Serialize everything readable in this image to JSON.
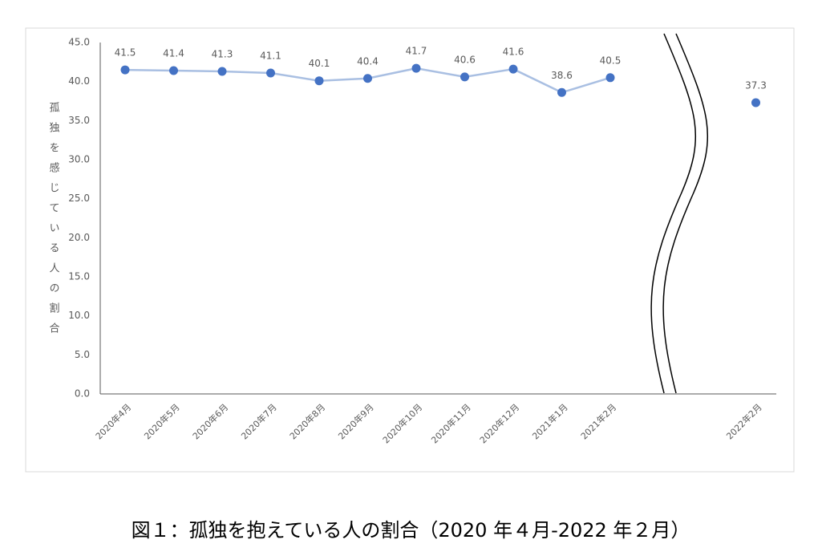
{
  "chart_data": {
    "type": "line",
    "y_label": "孤独を感じている人の割合",
    "caption": "図１：孤独を抱えている人の割合（2020 年４月-2022 年２月）",
    "categories": [
      "2020年4月",
      "2020年5月",
      "2020年6月",
      "2020年7月",
      "2020年8月",
      "2020年9月",
      "2020年10月",
      "2020年11月",
      "2020年12月",
      "2021年1月",
      "2021年2月",
      null,
      null,
      "2022年2月"
    ],
    "values": [
      41.5,
      41.4,
      41.3,
      41.1,
      40.1,
      40.4,
      41.7,
      40.6,
      41.6,
      38.6,
      40.5,
      null,
      null,
      37.3
    ],
    "line_color": "#a9bfe2",
    "marker_color": "#4472c4",
    "ylim": [
      0,
      45
    ],
    "yticks": [
      {
        "value": 0,
        "label": "0.0"
      },
      {
        "value": 5,
        "label": "5.0"
      },
      {
        "value": 10,
        "label": "10.0"
      },
      {
        "value": 15,
        "label": "15.0"
      },
      {
        "value": 20,
        "label": "20.0"
      },
      {
        "value": 25,
        "label": "25.0"
      },
      {
        "value": 30,
        "label": "30.0"
      },
      {
        "value": 35,
        "label": "35.0"
      },
      {
        "value": 40,
        "label": "40.0"
      },
      {
        "value": 45,
        "label": "45.0"
      }
    ],
    "grid": false
  }
}
